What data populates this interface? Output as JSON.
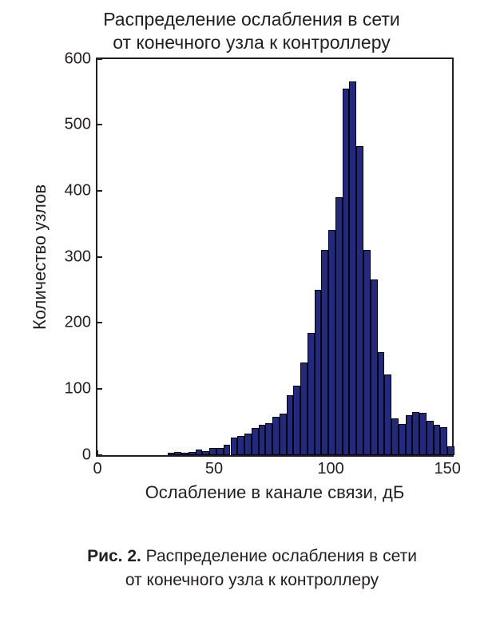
{
  "chart": {
    "type": "histogram",
    "title_line1": "Распределение ослабления в сети",
    "title_line2": "от конечного узла к контроллеру",
    "title_fontsize": 23,
    "title_color": "#231f20",
    "xlabel": "Ослабление в канале связи, дБ",
    "ylabel": "Количество узлов",
    "axis_label_fontsize": 22,
    "tick_fontsize": 20,
    "xlim": [
      0,
      152
    ],
    "ylim": [
      0,
      600
    ],
    "xticks": [
      0,
      50,
      100,
      150
    ],
    "yticks": [
      0,
      100,
      200,
      300,
      400,
      500,
      600
    ],
    "background_color": "#ffffff",
    "axis_color": "#231f20",
    "grid": false,
    "bar_color": "#212a80",
    "bar_edge_color": "#000000",
    "bar_edge_width": 1,
    "bin_width": 3,
    "bins_x": [
      30,
      33,
      36,
      39,
      42,
      45,
      48,
      51,
      54,
      57,
      60,
      63,
      66,
      69,
      72,
      75,
      78,
      81,
      84,
      87,
      90,
      93,
      96,
      99,
      102,
      105,
      108,
      111,
      114,
      117,
      120,
      123,
      126,
      129,
      132,
      135,
      138,
      141,
      144,
      147,
      150
    ],
    "values": [
      3,
      4,
      3,
      4,
      8,
      6,
      10,
      10,
      15,
      26,
      28,
      32,
      40,
      45,
      48,
      58,
      62,
      90,
      105,
      140,
      185,
      250,
      310,
      340,
      390,
      555,
      565,
      468,
      310,
      265,
      155,
      122,
      55,
      47,
      60,
      65,
      63,
      52,
      45,
      42,
      13
    ]
  },
  "caption": {
    "label": "Рис. 2.",
    "text_line1": " Распределение ослабления в сети",
    "text_line2": "от конечного узла к контроллеру",
    "fontsize": 21,
    "bold_label": true,
    "color": "#231f20"
  }
}
